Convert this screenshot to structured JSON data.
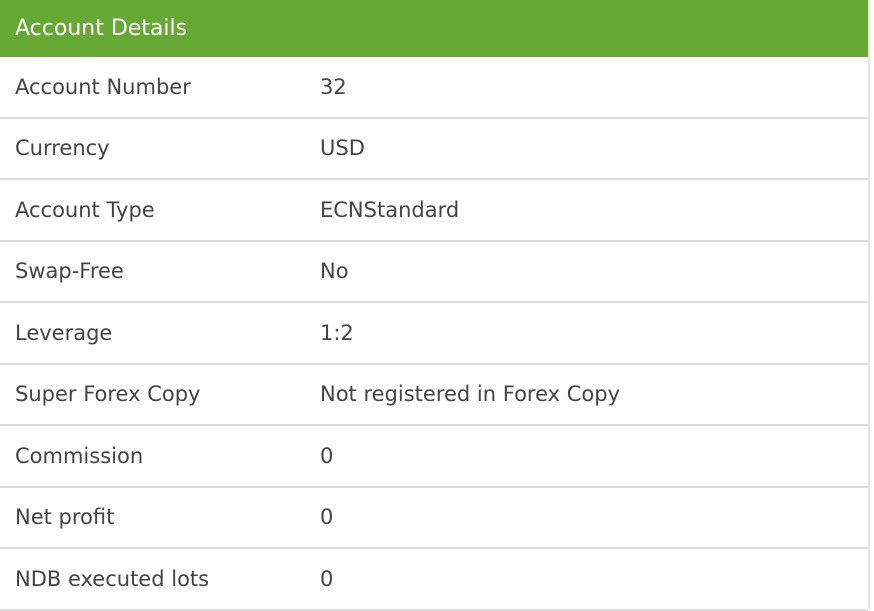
{
  "title": "Account Details",
  "colors": {
    "header": "#66a834"
  },
  "rows": [
    {
      "label": "Account Number",
      "value": "32"
    },
    {
      "label": "Currency",
      "value": "USD"
    },
    {
      "label": "Account Type",
      "value": "ECNStandard"
    },
    {
      "label": "Swap-Free",
      "value": "No"
    },
    {
      "label": "Leverage",
      "value": "1:2"
    },
    {
      "label": "Super Forex Copy",
      "value": "Not registered in Forex Copy"
    },
    {
      "label": "Commission",
      "value": "0"
    },
    {
      "label": "Net profit",
      "value": "0"
    },
    {
      "label": "NDB executed lots",
      "value": "0"
    }
  ]
}
